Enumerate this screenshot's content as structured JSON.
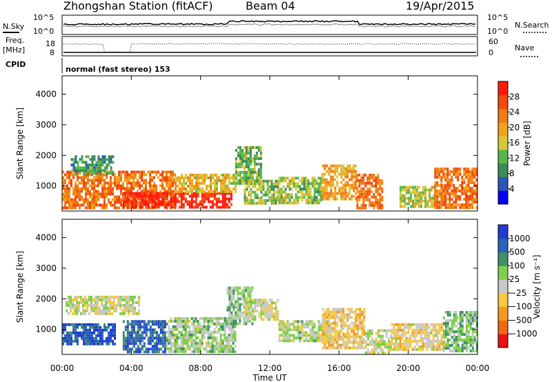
{
  "header": {
    "station": "Zhongshan Station (fitACF)",
    "beam": "Beam 04",
    "date": "19/Apr/2015"
  },
  "strips": {
    "nsky_label": "N.Sky",
    "nsearch_label": "N.Search",
    "noise_ticks": [
      "10^5",
      "10^0"
    ],
    "freq_label_1": "Freq.",
    "freq_label_2": "[MHz]",
    "freq_ticks": [
      "18",
      "8"
    ],
    "nave_label": "Nave",
    "nave_ticks": [
      "60",
      "0"
    ],
    "cpid_label": "CPID",
    "cpid_value": "normal (fast stereo) 153"
  },
  "x_axis": {
    "label": "Time UT",
    "ticks": [
      "00:00",
      "04:00",
      "08:00",
      "12:00",
      "16:00",
      "20:00",
      "00:00"
    ],
    "range_hours": [
      0,
      24
    ]
  },
  "colors": {
    "power": [
      "#0000ff",
      "#2a57b4",
      "#3d8a5a",
      "#57b84a",
      "#d6c83a",
      "#f2a21b",
      "#f07a14",
      "#f24a10",
      "#ff1a0a"
    ],
    "velocity": [
      "#ee1111",
      "#f06a10",
      "#f39a1a",
      "#f6c940",
      "#c8c8c8",
      "#7fcf4a",
      "#3f8f6a",
      "#2b61b6",
      "#1f3ccf"
    ]
  },
  "chart_data": [
    {
      "type": "heatmap",
      "title": "",
      "xlabel": "",
      "ylabel": "Slant Range [km]",
      "ylim": [
        180,
        4600
      ],
      "yticks": [
        "4000",
        "3000",
        "2000",
        "1000"
      ],
      "colorbar": {
        "label": "Power [dB]",
        "ticks": [
          "28",
          "24",
          "20",
          "16",
          "12",
          "8",
          "4"
        ],
        "range": [
          0,
          32
        ]
      },
      "regions": [
        {
          "t0": 0.0,
          "t1": 6.5,
          "r0": 300,
          "r1": 1500,
          "value": 24
        },
        {
          "t0": 3.5,
          "t1": 9.8,
          "r0": 300,
          "r1": 800,
          "value": 30
        },
        {
          "t0": 0.5,
          "t1": 3.0,
          "r0": 1400,
          "r1": 2000,
          "value": 10
        },
        {
          "t0": 6.5,
          "t1": 10.0,
          "r0": 800,
          "r1": 1400,
          "value": 18
        },
        {
          "t0": 10.0,
          "t1": 11.5,
          "r0": 1100,
          "r1": 2300,
          "value": 12
        },
        {
          "t0": 10.5,
          "t1": 12.5,
          "r0": 400,
          "r1": 1200,
          "value": 14
        },
        {
          "t0": 12.5,
          "t1": 15.0,
          "r0": 400,
          "r1": 1300,
          "value": 14
        },
        {
          "t0": 15.0,
          "t1": 17.0,
          "r0": 600,
          "r1": 1700,
          "value": 20
        },
        {
          "t0": 17.0,
          "t1": 18.5,
          "r0": 250,
          "r1": 1400,
          "value": 24
        },
        {
          "t0": 19.5,
          "t1": 21.5,
          "r0": 300,
          "r1": 1000,
          "value": 16
        },
        {
          "t0": 21.5,
          "t1": 24.0,
          "r0": 300,
          "r1": 1600,
          "value": 24
        }
      ]
    },
    {
      "type": "heatmap",
      "title": "",
      "xlabel": "Time UT",
      "ylabel": "Slant Range [km]",
      "ylim": [
        180,
        4600
      ],
      "yticks": [
        "4000",
        "3000",
        "2000",
        "1000"
      ],
      "colorbar": {
        "label": "Velocity [m s⁻¹]",
        "ticks": [
          "1000",
          "500",
          "100",
          "25",
          "−25",
          "−100",
          "−500",
          "−1000"
        ],
        "range": [
          -1200,
          1200
        ]
      },
      "regions": [
        {
          "t0": 0.0,
          "t1": 3.0,
          "r0": 500,
          "r1": 1200,
          "value": 900
        },
        {
          "t0": 0.2,
          "t1": 4.5,
          "r0": 1500,
          "r1": 2100,
          "value": 0
        },
        {
          "t0": 3.5,
          "t1": 6.0,
          "r0": 300,
          "r1": 1300,
          "value": 800
        },
        {
          "t0": 6.0,
          "t1": 10.0,
          "r0": 300,
          "r1": 1400,
          "value": 150
        },
        {
          "t0": 9.5,
          "t1": 11.0,
          "r0": 1200,
          "r1": 2400,
          "value": 200
        },
        {
          "t0": 10.5,
          "t1": 12.5,
          "r0": 1300,
          "r1": 2000,
          "value": 0
        },
        {
          "t0": 12.5,
          "t1": 15.5,
          "r0": 600,
          "r1": 1300,
          "value": 80
        },
        {
          "t0": 15.0,
          "t1": 17.5,
          "r0": 400,
          "r1": 1700,
          "value": -250
        },
        {
          "t0": 17.5,
          "t1": 19.0,
          "r0": 250,
          "r1": 1000,
          "value": 50
        },
        {
          "t0": 19.0,
          "t1": 22.0,
          "r0": 300,
          "r1": 1200,
          "value": -150
        },
        {
          "t0": 22.0,
          "t1": 24.0,
          "r0": 300,
          "r1": 1600,
          "value": 300
        }
      ]
    }
  ]
}
